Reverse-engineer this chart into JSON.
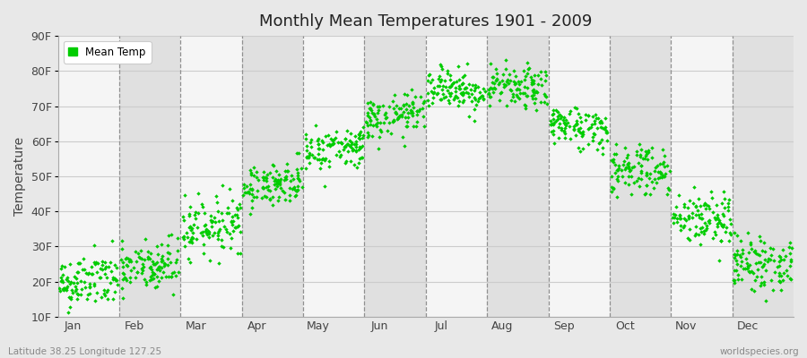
{
  "title": "Monthly Mean Temperatures 1901 - 2009",
  "ylabel": "Temperature",
  "xlabel_labels": [
    "Jan",
    "Feb",
    "Mar",
    "Apr",
    "May",
    "Jun",
    "Jul",
    "Aug",
    "Sep",
    "Oct",
    "Nov",
    "Dec"
  ],
  "ytick_labels": [
    "10F",
    "20F",
    "30F",
    "40F",
    "50F",
    "60F",
    "70F",
    "80F",
    "90F"
  ],
  "ytick_values": [
    10,
    20,
    30,
    40,
    50,
    60,
    70,
    80,
    90
  ],
  "ylim": [
    10,
    90
  ],
  "legend_label": "Mean Temp",
  "dot_color": "#00CC00",
  "background_color": "#e8e8e8",
  "band_colors": [
    "#f5f5f5",
    "#e0e0e0"
  ],
  "footer_left": "Latitude 38.25 Longitude 127.25",
  "footer_right": "worldspecies.org",
  "monthly_mean_F": [
    20,
    24,
    36,
    48,
    58,
    67,
    75,
    75,
    64,
    52,
    38,
    25
  ],
  "monthly_std_F": [
    4,
    4,
    4,
    3,
    3,
    3,
    3,
    3,
    3,
    4,
    4,
    4
  ],
  "n_years": 109,
  "seed": 42
}
